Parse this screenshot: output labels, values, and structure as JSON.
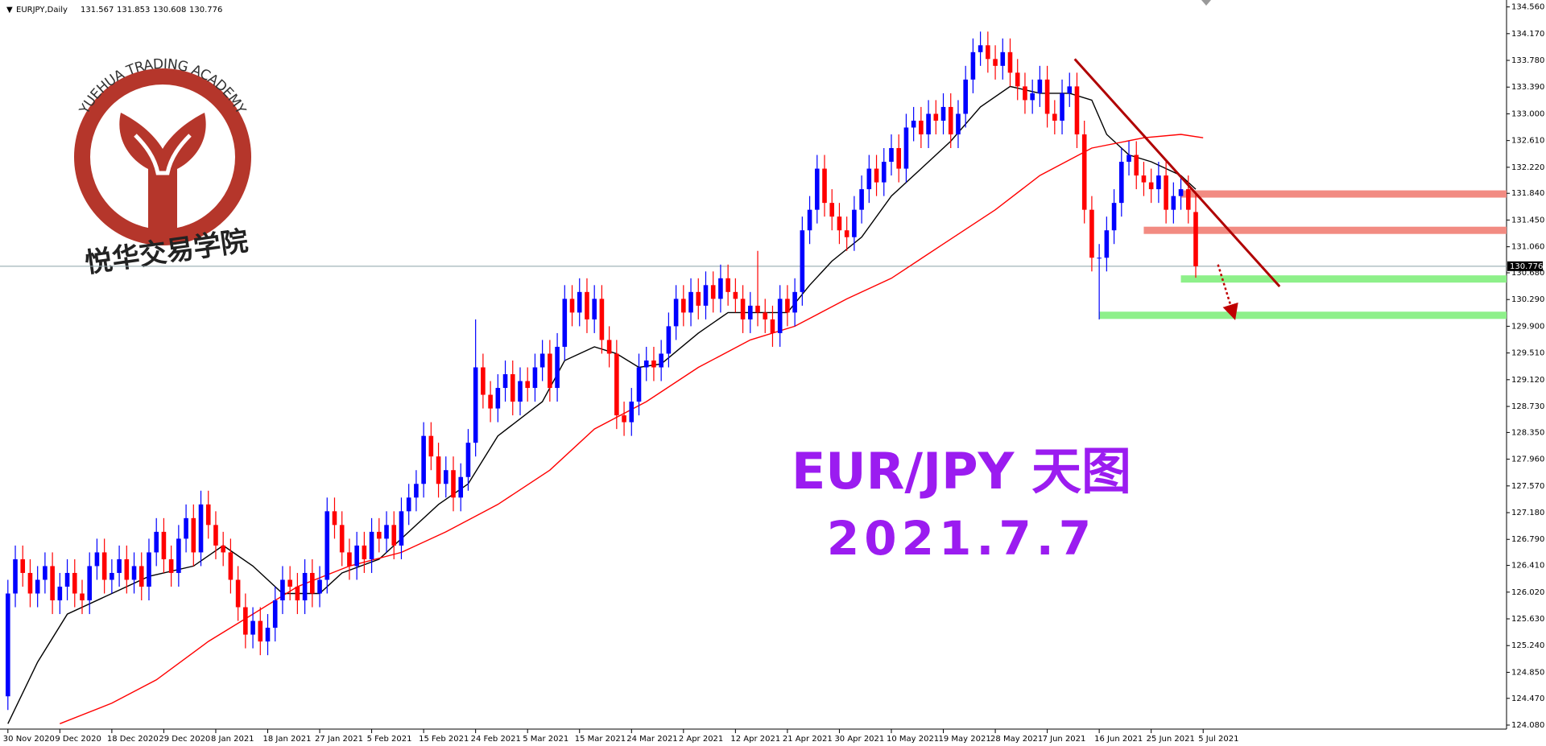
{
  "chart_data": {
    "type": "candlestick",
    "symbol": "EURJPY,Daily",
    "annotations": [
      "EUR/JPY 天图",
      "2021.7.7"
    ],
    "watermark": {
      "title": "YUEHUA TRADING ACADEMY",
      "subtitle": "悦华交易学院"
    },
    "up_color": "#0000ff",
    "down_color": "#ff0000",
    "ylim": [
      124.08,
      134.56
    ],
    "yticks": [
      {
        "value": 134.56,
        "label": "134.560"
      },
      {
        "value": 134.17,
        "label": "134.170"
      },
      {
        "value": 133.78,
        "label": "133.780"
      },
      {
        "value": 133.39,
        "label": "133.390"
      },
      {
        "value": 133,
        "label": "133.000"
      },
      {
        "value": 132.61,
        "label": "132.610"
      },
      {
        "value": 132.22,
        "label": "132.220"
      },
      {
        "value": 131.84,
        "label": "131.840"
      },
      {
        "value": 131.45,
        "label": "131.450"
      },
      {
        "value": 131.06,
        "label": "131.060"
      },
      {
        "value": 130.68,
        "label": "130.680"
      },
      {
        "value": 130.29,
        "label": "130.290"
      },
      {
        "value": 129.9,
        "label": "129.900"
      },
      {
        "value": 129.51,
        "label": "129.510"
      },
      {
        "value": 129.12,
        "label": "129.120"
      },
      {
        "value": 128.73,
        "label": "128.730"
      },
      {
        "value": 128.35,
        "label": "128.350"
      },
      {
        "value": 127.96,
        "label": "127.960"
      },
      {
        "value": 127.57,
        "label": "127.570"
      },
      {
        "value": 127.18,
        "label": "127.180"
      },
      {
        "value": 126.79,
        "label": "126.790"
      },
      {
        "value": 126.41,
        "label": "126.410"
      },
      {
        "value": 126.02,
        "label": "126.020"
      },
      {
        "value": 125.63,
        "label": "125.630"
      },
      {
        "value": 125.24,
        "label": "125.240"
      },
      {
        "value": 124.85,
        "label": "124.850"
      },
      {
        "value": 124.47,
        "label": "124.470"
      },
      {
        "value": 124.08,
        "label": "124.080"
      }
    ],
    "xticks": [
      {
        "value": 0,
        "label": "30 Nov 2020"
      },
      {
        "value": 7,
        "label": "9 Dec 2020"
      },
      {
        "value": 14,
        "label": "18 Dec 2020"
      },
      {
        "value": 21,
        "label": "29 Dec 2020"
      },
      {
        "value": 28,
        "label": "8 Jan 2021"
      },
      {
        "value": 35,
        "label": "18 Jan 2021"
      },
      {
        "value": 42,
        "label": "27 Jan 2021"
      },
      {
        "value": 49,
        "label": "5 Feb 2021"
      },
      {
        "value": 56,
        "label": "15 Feb 2021"
      },
      {
        "value": 63,
        "label": "24 Feb 2021"
      },
      {
        "value": 70,
        "label": "5 Mar 2021"
      },
      {
        "value": 77,
        "label": "15 Mar 2021"
      },
      {
        "value": 84,
        "label": "24 Mar 2021"
      },
      {
        "value": 91,
        "label": "2 Apr 2021"
      },
      {
        "value": 98,
        "label": "12 Apr 2021"
      },
      {
        "value": 105,
        "label": "21 Apr 2021"
      },
      {
        "value": 112,
        "label": "30 Apr 2021"
      },
      {
        "value": 119,
        "label": "10 May 2021"
      },
      {
        "value": 126,
        "label": "19 May 2021"
      },
      {
        "value": 133,
        "label": "28 May 2021"
      },
      {
        "value": 140,
        "label": "7 Jun 2021"
      },
      {
        "value": 147,
        "label": "16 Jun 2021"
      },
      {
        "value": 154,
        "label": "25 Jun 2021"
      },
      {
        "value": 161,
        "label": "5 Jul 2021"
      }
    ],
    "ohlc": [
      [
        124.5,
        126.2,
        124.3,
        126.0
      ],
      [
        126.0,
        126.7,
        125.8,
        126.5
      ],
      [
        126.5,
        126.7,
        126.1,
        126.3
      ],
      [
        126.3,
        126.5,
        125.8,
        126.0
      ],
      [
        126.0,
        126.4,
        125.8,
        126.2
      ],
      [
        126.2,
        126.6,
        126.0,
        126.4
      ],
      [
        126.4,
        126.6,
        125.7,
        125.9
      ],
      [
        125.9,
        126.3,
        125.7,
        126.1
      ],
      [
        126.1,
        126.5,
        125.9,
        126.3
      ],
      [
        126.3,
        126.5,
        125.8,
        126.0
      ],
      [
        126.0,
        126.2,
        125.7,
        125.9
      ],
      [
        125.9,
        126.6,
        125.7,
        126.4
      ],
      [
        126.4,
        126.8,
        126.2,
        126.6
      ],
      [
        126.6,
        126.8,
        126.0,
        126.2
      ],
      [
        126.2,
        126.5,
        126.0,
        126.3
      ],
      [
        126.3,
        126.7,
        126.1,
        126.5
      ],
      [
        126.5,
        126.7,
        126.0,
        126.2
      ],
      [
        126.2,
        126.6,
        126.0,
        126.4
      ],
      [
        126.4,
        126.6,
        125.9,
        126.1
      ],
      [
        126.1,
        126.8,
        125.9,
        126.6
      ],
      [
        126.6,
        127.1,
        126.4,
        126.9
      ],
      [
        126.9,
        127.1,
        126.3,
        126.5
      ],
      [
        126.5,
        126.7,
        126.1,
        126.3
      ],
      [
        126.3,
        127.0,
        126.1,
        126.8
      ],
      [
        126.8,
        127.3,
        126.6,
        127.1
      ],
      [
        127.1,
        127.3,
        126.4,
        126.6
      ],
      [
        126.6,
        127.5,
        126.4,
        127.3
      ],
      [
        127.3,
        127.5,
        126.8,
        127.0
      ],
      [
        127.0,
        127.2,
        126.5,
        126.7
      ],
      [
        126.7,
        126.9,
        126.4,
        126.6
      ],
      [
        126.6,
        126.8,
        126.0,
        126.2
      ],
      [
        126.2,
        126.4,
        125.6,
        125.8
      ],
      [
        125.8,
        126.0,
        125.2,
        125.4
      ],
      [
        125.4,
        125.8,
        125.2,
        125.6
      ],
      [
        125.6,
        125.8,
        125.1,
        125.3
      ],
      [
        125.3,
        125.7,
        125.1,
        125.5
      ],
      [
        125.5,
        126.1,
        125.3,
        125.9
      ],
      [
        125.9,
        126.4,
        125.7,
        126.2
      ],
      [
        126.2,
        126.4,
        125.9,
        126.1
      ],
      [
        126.1,
        126.3,
        125.7,
        125.9
      ],
      [
        125.9,
        126.5,
        125.7,
        126.3
      ],
      [
        126.3,
        126.5,
        125.8,
        126.0
      ],
      [
        126.0,
        126.4,
        125.8,
        126.2
      ],
      [
        126.2,
        127.4,
        126.0,
        127.2
      ],
      [
        127.2,
        127.4,
        126.8,
        127.0
      ],
      [
        127.0,
        127.2,
        126.4,
        126.6
      ],
      [
        126.6,
        126.8,
        126.2,
        126.4
      ],
      [
        126.4,
        126.9,
        126.2,
        126.7
      ],
      [
        126.7,
        126.9,
        126.3,
        126.5
      ],
      [
        126.5,
        127.1,
        126.3,
        126.9
      ],
      [
        126.9,
        127.1,
        126.6,
        126.8
      ],
      [
        126.8,
        127.2,
        126.6,
        127.0
      ],
      [
        127.0,
        127.2,
        126.5,
        126.7
      ],
      [
        126.7,
        127.4,
        126.5,
        127.2
      ],
      [
        127.2,
        127.6,
        127.0,
        127.4
      ],
      [
        127.4,
        127.8,
        127.2,
        127.6
      ],
      [
        127.6,
        128.5,
        127.4,
        128.3
      ],
      [
        128.3,
        128.5,
        127.8,
        128.0
      ],
      [
        128.0,
        128.2,
        127.4,
        127.6
      ],
      [
        127.6,
        128.0,
        127.4,
        127.8
      ],
      [
        127.8,
        128.0,
        127.2,
        127.4
      ],
      [
        127.4,
        127.9,
        127.2,
        127.7
      ],
      [
        127.7,
        128.4,
        127.5,
        128.2
      ],
      [
        128.2,
        130.0,
        128.0,
        129.3
      ],
      [
        129.3,
        129.5,
        128.7,
        128.9
      ],
      [
        128.9,
        129.1,
        128.5,
        128.7
      ],
      [
        128.7,
        129.2,
        128.5,
        129.0
      ],
      [
        129.0,
        129.4,
        128.8,
        129.2
      ],
      [
        129.2,
        129.4,
        128.6,
        128.8
      ],
      [
        128.8,
        129.3,
        128.6,
        129.1
      ],
      [
        129.1,
        129.3,
        128.8,
        129.0
      ],
      [
        129.0,
        129.5,
        128.8,
        129.3
      ],
      [
        129.3,
        129.7,
        129.1,
        129.5
      ],
      [
        129.5,
        129.7,
        128.8,
        129.0
      ],
      [
        129.0,
        129.8,
        128.8,
        129.6
      ],
      [
        129.6,
        130.5,
        129.4,
        130.3
      ],
      [
        130.3,
        130.5,
        129.9,
        130.1
      ],
      [
        130.1,
        130.6,
        129.9,
        130.4
      ],
      [
        130.4,
        130.6,
        129.8,
        130.0
      ],
      [
        130.0,
        130.5,
        129.8,
        130.3
      ],
      [
        130.3,
        130.5,
        129.5,
        129.7
      ],
      [
        129.7,
        129.9,
        129.3,
        129.5
      ],
      [
        129.5,
        129.7,
        128.4,
        128.6
      ],
      [
        128.6,
        128.8,
        128.3,
        128.5
      ],
      [
        128.5,
        129.0,
        128.3,
        128.8
      ],
      [
        128.8,
        129.5,
        128.6,
        129.3
      ],
      [
        129.3,
        129.6,
        129.1,
        129.4
      ],
      [
        129.4,
        129.6,
        129.1,
        129.3
      ],
      [
        129.3,
        129.7,
        129.1,
        129.5
      ],
      [
        129.5,
        130.1,
        129.3,
        129.9
      ],
      [
        129.9,
        130.5,
        129.7,
        130.3
      ],
      [
        130.3,
        130.5,
        129.9,
        130.1
      ],
      [
        130.1,
        130.6,
        129.9,
        130.4
      ],
      [
        130.4,
        130.6,
        130.0,
        130.2
      ],
      [
        130.2,
        130.7,
        130.0,
        130.5
      ],
      [
        130.5,
        130.7,
        130.1,
        130.3
      ],
      [
        130.3,
        130.8,
        130.1,
        130.6
      ],
      [
        130.6,
        130.8,
        130.2,
        130.4
      ],
      [
        130.4,
        130.6,
        130.1,
        130.3
      ],
      [
        130.3,
        130.5,
        129.8,
        130.0
      ],
      [
        130.0,
        130.4,
        129.8,
        130.2
      ],
      [
        130.2,
        131.0,
        129.9,
        130.1
      ],
      [
        130.1,
        130.3,
        129.8,
        130.0
      ],
      [
        130.0,
        130.2,
        129.6,
        129.8
      ],
      [
        129.8,
        130.5,
        129.6,
        130.3
      ],
      [
        130.3,
        130.5,
        129.9,
        130.1
      ],
      [
        130.1,
        130.6,
        129.9,
        130.4
      ],
      [
        130.4,
        131.5,
        130.2,
        131.3
      ],
      [
        131.3,
        131.8,
        131.1,
        131.6
      ],
      [
        131.6,
        132.4,
        131.4,
        132.2
      ],
      [
        132.2,
        132.4,
        131.5,
        131.7
      ],
      [
        131.7,
        131.9,
        131.3,
        131.5
      ],
      [
        131.5,
        131.7,
        131.1,
        131.3
      ],
      [
        131.3,
        131.5,
        131.0,
        131.2
      ],
      [
        131.2,
        131.8,
        131.0,
        131.6
      ],
      [
        131.6,
        132.1,
        131.4,
        131.9
      ],
      [
        131.9,
        132.4,
        131.7,
        132.2
      ],
      [
        132.2,
        132.4,
        131.8,
        132.0
      ],
      [
        132.0,
        132.5,
        131.8,
        132.3
      ],
      [
        132.3,
        132.7,
        132.1,
        132.5
      ],
      [
        132.5,
        132.7,
        132.0,
        132.2
      ],
      [
        132.2,
        133.0,
        132.0,
        132.8
      ],
      [
        132.8,
        133.1,
        132.6,
        132.9
      ],
      [
        132.9,
        133.1,
        132.5,
        132.7
      ],
      [
        132.7,
        133.2,
        132.5,
        133.0
      ],
      [
        133.0,
        133.2,
        132.7,
        132.9
      ],
      [
        132.9,
        133.3,
        132.7,
        133.1
      ],
      [
        133.1,
        133.3,
        132.5,
        132.7
      ],
      [
        132.7,
        133.2,
        132.5,
        133.0
      ],
      [
        133.0,
        133.7,
        132.8,
        133.5
      ],
      [
        133.5,
        134.1,
        133.3,
        133.9
      ],
      [
        133.9,
        134.2,
        133.7,
        134.0
      ],
      [
        134.0,
        134.2,
        133.6,
        133.8
      ],
      [
        133.8,
        134.0,
        133.5,
        133.7
      ],
      [
        133.7,
        134.1,
        133.5,
        133.9
      ],
      [
        133.9,
        134.1,
        133.4,
        133.6
      ],
      [
        133.6,
        133.8,
        133.2,
        133.4
      ],
      [
        133.4,
        133.6,
        133.0,
        133.2
      ],
      [
        133.2,
        133.5,
        133.0,
        133.3
      ],
      [
        133.3,
        133.7,
        133.1,
        133.5
      ],
      [
        133.5,
        133.7,
        132.8,
        133.0
      ],
      [
        133.0,
        133.2,
        132.7,
        132.9
      ],
      [
        132.9,
        133.5,
        132.7,
        133.3
      ],
      [
        133.3,
        133.6,
        133.1,
        133.4
      ],
      [
        133.4,
        133.6,
        132.5,
        132.7
      ],
      [
        132.7,
        132.9,
        131.4,
        131.6
      ],
      [
        131.6,
        131.8,
        130.7,
        130.9
      ],
      [
        130.9,
        131.1,
        130.0,
        130.9
      ],
      [
        130.9,
        131.5,
        130.7,
        131.3
      ],
      [
        131.3,
        131.9,
        131.1,
        131.7
      ],
      [
        131.7,
        132.5,
        131.5,
        132.3
      ],
      [
        132.3,
        132.6,
        132.1,
        132.4
      ],
      [
        132.4,
        132.6,
        131.9,
        132.1
      ],
      [
        132.1,
        132.3,
        131.8,
        132.0
      ],
      [
        132.0,
        132.2,
        131.7,
        131.9
      ],
      [
        131.9,
        132.3,
        131.7,
        132.1
      ],
      [
        132.1,
        132.3,
        131.4,
        131.6
      ],
      [
        131.6,
        132.0,
        131.4,
        131.8
      ],
      [
        131.8,
        132.1,
        131.6,
        131.9
      ],
      [
        131.9,
        132.1,
        131.4,
        131.6
      ],
      [
        131.567,
        131.853,
        130.608,
        130.776
      ]
    ],
    "series": [
      {
        "color": "#000000",
        "x": [
          0,
          4,
          8,
          14,
          19,
          25,
          29,
          33,
          37,
          42,
          45,
          50,
          54,
          58,
          62,
          66,
          72,
          75,
          79,
          82,
          85,
          88,
          93,
          97,
          101,
          105,
          108,
          111,
          115,
          119,
          123,
          127,
          131,
          135,
          139,
          143,
          146,
          148,
          151,
          154,
          158,
          160
        ],
        "values": [
          124.1,
          125.0,
          125.7,
          126.0,
          126.25,
          126.4,
          126.7,
          126.4,
          126.0,
          126.0,
          126.3,
          126.5,
          126.9,
          127.3,
          127.6,
          128.3,
          128.8,
          129.4,
          129.6,
          129.5,
          129.3,
          129.35,
          129.8,
          130.1,
          130.1,
          130.1,
          130.5,
          130.85,
          131.2,
          131.8,
          132.2,
          132.6,
          133.1,
          133.4,
          133.3,
          133.3,
          133.2,
          132.7,
          132.4,
          132.3,
          132.1,
          131.9
        ]
      },
      {
        "color": "#ff0000",
        "x": [
          7,
          14,
          20,
          27,
          33,
          39,
          46,
          53,
          59,
          66,
          73,
          79,
          86,
          93,
          100,
          106,
          113,
          119,
          126,
          133,
          139,
          146,
          153,
          158,
          161
        ],
        "values": [
          124.1,
          124.4,
          124.74,
          125.3,
          125.7,
          126.1,
          126.4,
          126.6,
          126.9,
          127.3,
          127.8,
          128.4,
          128.8,
          129.3,
          129.7,
          129.9,
          130.3,
          130.6,
          131.1,
          131.6,
          132.1,
          132.5,
          132.65,
          132.7,
          132.65
        ]
      }
    ],
    "levels": [
      {
        "value": 131.83,
        "from": 158,
        "color": "#f28b82"
      },
      {
        "value": 131.3,
        "from": 153,
        "color": "#f28b82"
      },
      {
        "value": 130.59,
        "from": 158,
        "color": "#8ef08a"
      },
      {
        "value": 130.06,
        "from": 147,
        "color": "#8ef08a"
      }
    ],
    "trendline": {
      "x": [
        143.7,
        171.3
      ],
      "values": [
        133.8,
        130.48
      ],
      "color": "#b00000"
    },
    "arrow": {
      "x": [
        163,
        165
      ],
      "values": [
        130.8,
        130.1
      ],
      "color": "#c00000"
    }
  }
}
